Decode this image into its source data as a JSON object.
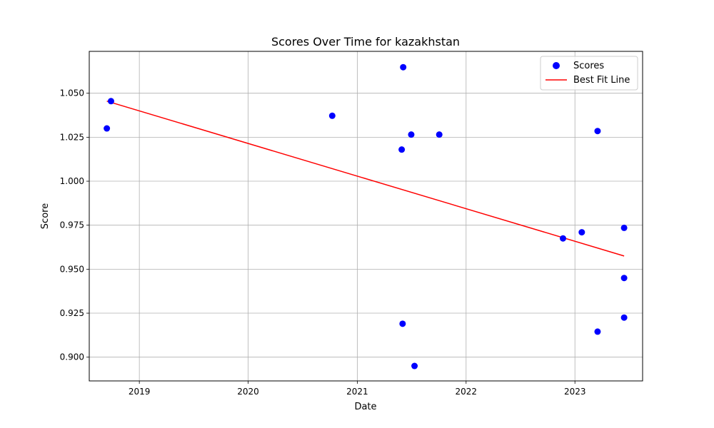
{
  "chart_data": {
    "type": "scatter",
    "title": "Scores Over Time for kazakhstan",
    "xlabel": "Date",
    "ylabel": "Score",
    "x_type": "date",
    "xlim": [
      "2018-07-17",
      "2023-08-16"
    ],
    "ylim": [
      0.8865,
      1.0738
    ],
    "x_ticks": [
      {
        "date": "2019-01-01",
        "label": "2019"
      },
      {
        "date": "2020-01-01",
        "label": "2020"
      },
      {
        "date": "2021-01-01",
        "label": "2021"
      },
      {
        "date": "2022-01-01",
        "label": "2022"
      },
      {
        "date": "2023-01-01",
        "label": "2023"
      }
    ],
    "y_ticks": [
      {
        "value": 0.9,
        "label": "0.900"
      },
      {
        "value": 0.925,
        "label": "0.925"
      },
      {
        "value": 0.95,
        "label": "0.950"
      },
      {
        "value": 0.975,
        "label": "0.975"
      },
      {
        "value": 1.0,
        "label": "1.000"
      },
      {
        "value": 1.025,
        "label": "1.025"
      },
      {
        "value": 1.05,
        "label": "1.050"
      }
    ],
    "grid": true,
    "legend_position": "top-right",
    "series": [
      {
        "name": "Scores",
        "kind": "scatter",
        "color": "#0000ff",
        "points": [
          {
            "x": "2018-09-14",
            "y": 1.03
          },
          {
            "x": "2018-09-28",
            "y": 1.0455
          },
          {
            "x": "2020-10-09",
            "y": 1.0372
          },
          {
            "x": "2021-05-30",
            "y": 1.018
          },
          {
            "x": "2021-06-02",
            "y": 0.919
          },
          {
            "x": "2021-06-04",
            "y": 1.0648
          },
          {
            "x": "2021-07-01",
            "y": 1.0265
          },
          {
            "x": "2021-07-12",
            "y": 0.895
          },
          {
            "x": "2021-10-03",
            "y": 1.0265
          },
          {
            "x": "2022-11-22",
            "y": 0.9675
          },
          {
            "x": "2023-01-24",
            "y": 0.971
          },
          {
            "x": "2023-03-18",
            "y": 1.0285
          },
          {
            "x": "2023-03-18",
            "y": 0.9145
          },
          {
            "x": "2023-06-15",
            "y": 0.9735
          },
          {
            "x": "2023-06-15",
            "y": 0.945
          },
          {
            "x": "2023-06-15",
            "y": 0.9225
          }
        ]
      },
      {
        "name": "Best Fit Line",
        "kind": "line",
        "color": "#ff0000",
        "points": [
          {
            "x": "2018-09-14",
            "y": 1.0455
          },
          {
            "x": "2023-06-15",
            "y": 0.9575
          }
        ]
      }
    ]
  }
}
